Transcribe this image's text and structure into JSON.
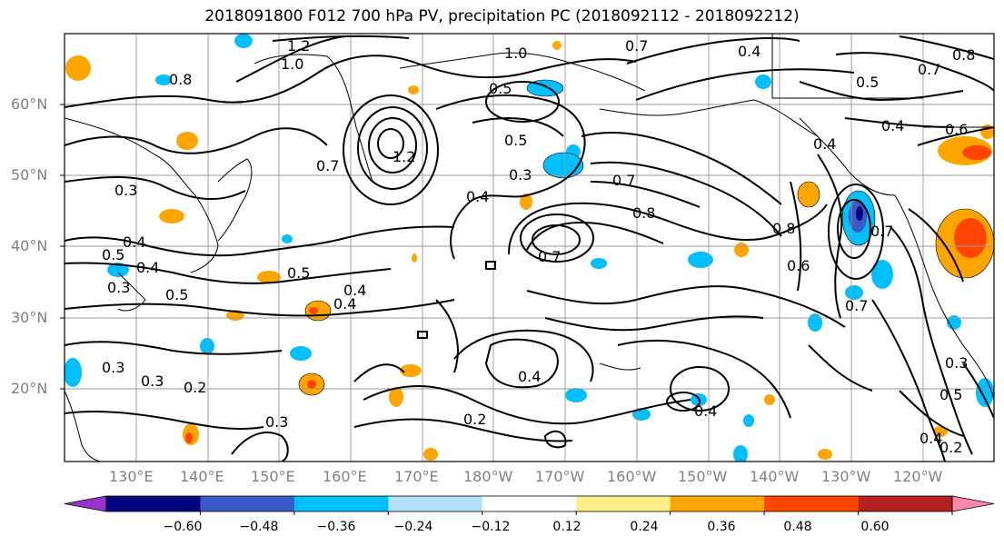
{
  "title": "2018091800 F012 700 hPa PV, precipitation PC (2018092112 - 2018092212)",
  "lat_labels": [
    "60°N",
    "50°N",
    "40°N",
    "30°N",
    "20°N"
  ],
  "lon_labels": [
    "130°E",
    "140°E",
    "150°E",
    "160°E",
    "170°E",
    "180°W",
    "170°W",
    "160°W",
    "150°W",
    "140°W",
    "130°W",
    "120°W"
  ],
  "contour_labels": [
    "1.2",
    "1.0",
    "0.8",
    "1.0",
    "0.7",
    "0.4",
    "0.5",
    "0.8",
    "0.5",
    "0.4",
    "0.6",
    "0.5",
    "0.7",
    "1.2",
    "0.4",
    "0.7",
    "0.3",
    "0.4",
    "0.3",
    "0.7",
    "0.8",
    "0.8",
    "0.7",
    "0.7",
    "0.4",
    "0.5",
    "0.6",
    "0.4",
    "0.3",
    "0.5",
    "0.5",
    "0.4",
    "0.4",
    "0.7",
    "0.3",
    "0.3",
    "0.2",
    "0.4",
    "0.2",
    "0.4",
    "0.3",
    "0.5",
    "0.4",
    "0.3",
    "0.2"
  ],
  "colorbar": {
    "colors": [
      "#9933cc",
      "#000080",
      "#3a5bc7",
      "#00bfff",
      "#b0e0fa",
      "#ffffff",
      "#ffee88",
      "#ffa500",
      "#ff4500",
      "#b22222",
      "#ff88aa"
    ],
    "labels": [
      "−0.60",
      "−0.48",
      "−0.36",
      "−0.24",
      "−0.12",
      "0.12",
      "0.24",
      "0.36",
      "0.48",
      "0.60"
    ]
  }
}
